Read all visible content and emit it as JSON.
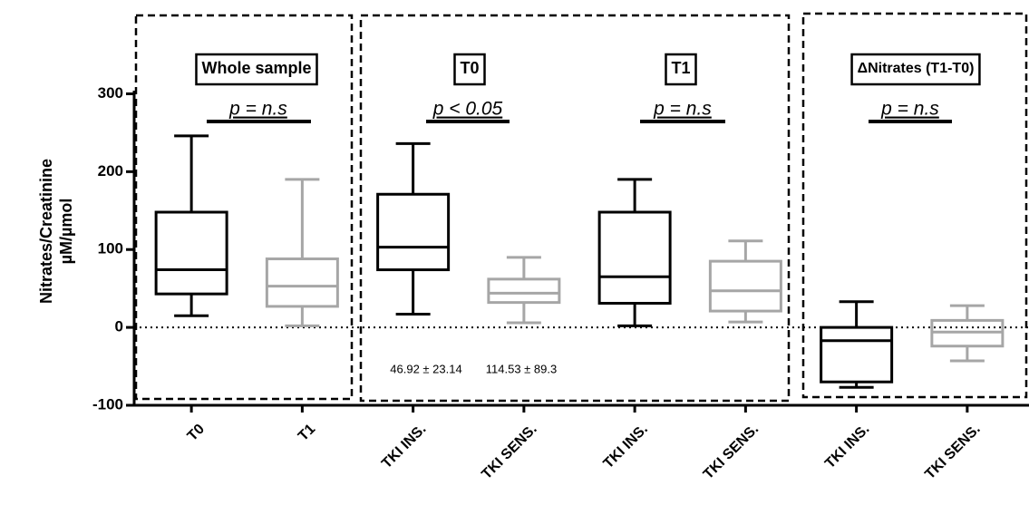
{
  "chart_data": {
    "type": "box",
    "ylabel": [
      "Nitrates/Creatinine",
      "µM/µmol"
    ],
    "categories": [
      "T0",
      "T1",
      "TKI INS.",
      "TKI SENS.",
      "TKI INS.",
      "TKI SENS.",
      "TKI INS.",
      "TKI SENS."
    ],
    "stats": {
      "min": [
        15,
        2,
        17,
        6,
        2,
        7,
        -77,
        -43
      ],
      "q1": [
        43,
        27,
        74,
        32,
        31,
        21,
        -70,
        -24
      ],
      "median": [
        74,
        53,
        103,
        44,
        65,
        47,
        -17,
        -6
      ],
      "q3": [
        148,
        88,
        171,
        62,
        148,
        85,
        0,
        9
      ],
      "max": [
        246,
        190,
        236,
        90,
        190,
        111,
        33,
        28
      ]
    },
    "box_colors": [
      "#000000",
      "#a6a6a6",
      "#000000",
      "#a6a6a6",
      "#000000",
      "#a6a6a6",
      "#000000",
      "#a6a6a6"
    ],
    "ylim": [
      -100,
      403
    ],
    "yticks": [
      -100,
      0,
      100,
      200,
      300
    ],
    "reference_line": 0,
    "annotations": [
      {
        "label": "Whole sample",
        "p": "p = n.s"
      },
      {
        "label": "T0",
        "p": "p < 0.05"
      },
      {
        "label": "T1",
        "p": "p = n.s"
      },
      {
        "label": "ΔNitrates (T1-T0)",
        "p": "p = n.s"
      }
    ],
    "notes": [
      "46.92 ± 23.14",
      "114.53 ± 89.3"
    ]
  }
}
